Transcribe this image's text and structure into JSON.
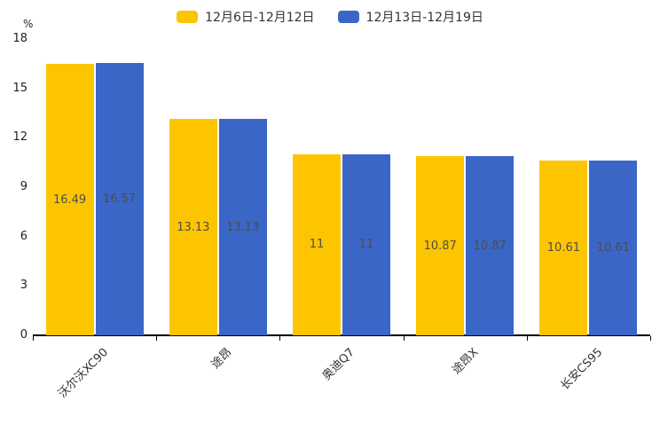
{
  "chart_data": {
    "type": "bar",
    "title": "",
    "xlabel": "",
    "ylabel": "%",
    "ylim": [
      0,
      18
    ],
    "ytick_step": 3,
    "grid": false,
    "legend_position": "top",
    "categories": [
      "沃尔沃XC90",
      "途昂",
      "奥迪Q7",
      "途昂X",
      "长安CS95"
    ],
    "series": [
      {
        "name": "12月6日-12月12日",
        "color": "#FDC500",
        "values": [
          16.49,
          13.13,
          11,
          10.87,
          10.61
        ]
      },
      {
        "name": "12月13日-12月19日",
        "color": "#3A66C8",
        "values": [
          16.57,
          13.13,
          11,
          10.87,
          10.61
        ]
      }
    ],
    "value_label_color": "#4d4d4d",
    "axis_color": "#000000"
  }
}
